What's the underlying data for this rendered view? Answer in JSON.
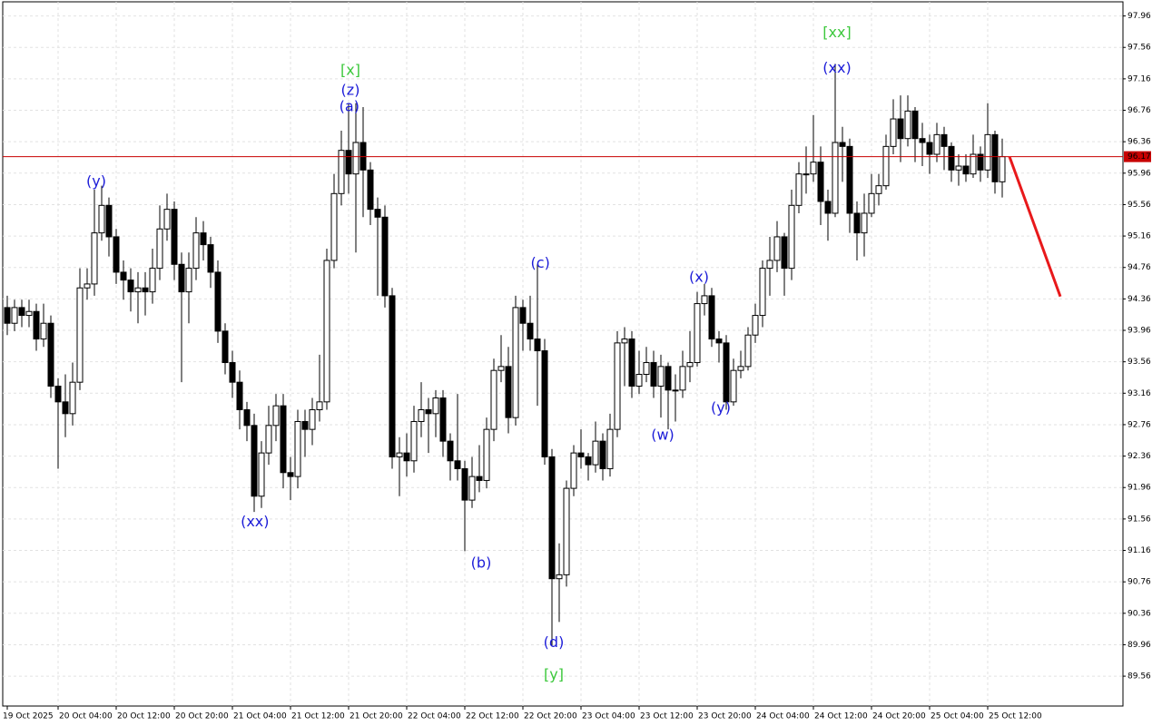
{
  "chart_data": {
    "type": "candlestick",
    "ylim": [
      89.18,
      98.14
    ],
    "yticks": [
      97.96,
      97.56,
      97.16,
      96.76,
      96.36,
      95.96,
      95.56,
      95.16,
      94.76,
      94.36,
      93.96,
      93.56,
      93.16,
      92.76,
      92.36,
      91.96,
      91.56,
      91.16,
      90.76,
      90.36,
      89.96,
      89.56
    ],
    "xticks": [
      {
        "value": 0,
        "label": "19 Oct 2025"
      },
      {
        "value": 7,
        "label": "20 Oct 04:00"
      },
      {
        "value": 15,
        "label": "20 Oct 12:00"
      },
      {
        "value": 23,
        "label": "20 Oct 20:00"
      },
      {
        "value": 31,
        "label": "21 Oct 04:00"
      },
      {
        "value": 39,
        "label": "21 Oct 12:00"
      },
      {
        "value": 47,
        "label": "21 Oct 20:00"
      },
      {
        "value": 55,
        "label": "22 Oct 04:00"
      },
      {
        "value": 63,
        "label": "22 Oct 12:00"
      },
      {
        "value": 71,
        "label": "22 Oct 20:00"
      },
      {
        "value": 79,
        "label": "23 Oct 04:00"
      },
      {
        "value": 87,
        "label": "23 Oct 12:00"
      },
      {
        "value": 95,
        "label": "23 Oct 20:00"
      },
      {
        "value": 103,
        "label": "24 Oct 04:00"
      },
      {
        "value": 111,
        "label": "24 Oct 12:00"
      },
      {
        "value": 119,
        "label": "24 Oct 20:00"
      },
      {
        "value": 127,
        "label": "25 Oct 04:00"
      },
      {
        "value": 135,
        "label": "25 Oct 12:00"
      }
    ],
    "grid": true,
    "up_color": "#ffffff",
    "down_color": "#000000",
    "open": [
      94.25,
      94.05,
      94.25,
      94.15,
      94.2,
      93.85,
      94.05,
      93.25,
      93.05,
      92.9,
      93.3,
      94.5,
      94.55,
      95.2,
      95.55,
      95.15,
      94.7,
      94.6,
      94.45,
      94.5,
      94.45,
      94.75,
      95.25,
      95.5,
      94.8,
      94.45,
      94.75,
      95.2,
      95.05,
      94.7,
      93.95,
      93.55,
      93.3,
      92.95,
      92.75,
      91.85,
      92.4,
      92.75,
      93.0,
      92.15,
      92.1,
      92.8,
      92.7,
      92.95,
      93.05,
      94.85,
      95.7,
      96.25,
      95.95,
      96.35,
      96.0,
      95.5,
      95.4,
      94.4,
      92.35,
      92.4,
      92.3,
      92.8,
      92.95,
      92.9,
      93.1,
      92.55,
      92.3,
      92.2,
      91.8,
      92.1,
      92.05,
      92.7,
      93.45,
      93.5,
      92.85,
      94.25,
      94.05,
      93.85,
      93.7,
      92.35,
      90.8,
      90.85,
      91.95,
      92.4,
      92.35,
      92.25,
      92.55,
      92.2,
      92.7,
      93.8,
      93.85,
      93.25,
      93.4,
      93.55,
      93.25,
      93.5,
      93.2,
      93.2,
      93.5,
      93.55,
      94.3,
      94.4,
      93.85,
      93.8,
      93.05,
      93.45,
      93.5,
      93.9,
      94.15,
      94.75,
      94.85,
      95.15,
      94.75,
      95.55,
      95.95,
      95.95,
      96.1,
      95.6,
      95.45,
      96.35,
      96.3,
      95.45,
      95.2,
      95.45,
      95.7,
      95.8,
      96.3,
      96.65,
      96.4,
      96.75,
      96.4,
      96.35,
      96.2,
      96.45,
      96.3,
      96.0,
      96.05,
      95.95,
      96.2,
      96.0,
      96.45,
      95.85
    ],
    "high": [
      94.4,
      94.35,
      94.35,
      94.35,
      94.3,
      94.3,
      94.15,
      93.35,
      93.4,
      93.55,
      94.75,
      94.75,
      95.75,
      95.8,
      95.65,
      95.25,
      94.85,
      94.75,
      94.7,
      94.7,
      95.0,
      95.55,
      95.7,
      95.6,
      94.95,
      94.95,
      95.4,
      95.35,
      95.15,
      94.85,
      94.05,
      93.7,
      93.45,
      93.05,
      92.9,
      92.55,
      93.0,
      93.15,
      93.15,
      92.35,
      92.95,
      92.95,
      93.1,
      93.65,
      95.0,
      95.95,
      96.5,
      96.85,
      96.85,
      96.8,
      96.1,
      95.65,
      95.55,
      94.5,
      92.6,
      92.65,
      93.0,
      93.3,
      93.1,
      93.2,
      93.2,
      92.65,
      93.15,
      92.3,
      92.35,
      92.5,
      92.85,
      93.6,
      93.9,
      93.75,
      94.4,
      94.35,
      94.4,
      94.8,
      93.85,
      92.45,
      91.25,
      92.05,
      92.5,
      92.7,
      92.4,
      92.8,
      92.65,
      92.9,
      93.95,
      94.0,
      93.95,
      93.7,
      93.75,
      93.7,
      93.65,
      93.55,
      93.4,
      93.7,
      93.95,
      94.45,
      94.55,
      94.5,
      93.95,
      93.9,
      93.6,
      93.7,
      94.0,
      94.3,
      94.85,
      95.15,
      95.35,
      95.2,
      95.75,
      96.1,
      96.3,
      96.7,
      96.3,
      95.75,
      97.35,
      96.55,
      96.4,
      95.6,
      95.7,
      95.95,
      95.95,
      96.45,
      96.9,
      96.95,
      96.95,
      96.8,
      96.6,
      96.45,
      96.6,
      96.55,
      96.35,
      96.2,
      96.2,
      96.45,
      96.3,
      96.85,
      96.5,
      96.4
    ],
    "low": [
      93.9,
      93.95,
      94.0,
      94.0,
      93.7,
      93.75,
      93.1,
      92.2,
      92.6,
      92.75,
      93.2,
      94.35,
      94.4,
      95.1,
      94.9,
      94.55,
      94.35,
      94.2,
      94.05,
      94.15,
      94.3,
      94.6,
      95.1,
      94.6,
      93.3,
      94.05,
      94.6,
      94.85,
      94.5,
      93.8,
      93.4,
      93.1,
      92.7,
      92.55,
      91.65,
      91.7,
      92.25,
      92.55,
      91.95,
      91.8,
      91.95,
      92.35,
      92.5,
      92.8,
      92.95,
      94.75,
      95.55,
      95.7,
      94.95,
      95.4,
      95.3,
      94.4,
      94.25,
      92.2,
      91.85,
      92.1,
      92.15,
      92.6,
      92.4,
      92.6,
      92.35,
      92.05,
      92.05,
      91.15,
      91.7,
      91.9,
      91.95,
      92.55,
      93.3,
      92.65,
      92.75,
      93.7,
      93.7,
      93.0,
      92.25,
      89.95,
      90.25,
      90.7,
      91.85,
      92.2,
      92.05,
      92.15,
      92.05,
      92.1,
      92.6,
      93.25,
      93.1,
      93.15,
      93.3,
      93.1,
      92.85,
      92.7,
      92.8,
      93.1,
      93.3,
      93.5,
      94.15,
      93.75,
      93.55,
      92.95,
      93.0,
      93.35,
      93.45,
      93.8,
      94.0,
      94.4,
      94.7,
      94.4,
      94.6,
      95.45,
      95.7,
      95.85,
      95.3,
      95.1,
      95.4,
      95.85,
      95.2,
      94.85,
      94.9,
      95.4,
      95.55,
      95.75,
      96.2,
      96.1,
      96.3,
      96.1,
      96.05,
      95.95,
      96.1,
      96.0,
      95.85,
      95.8,
      95.85,
      95.9,
      95.85,
      95.9,
      95.7,
      95.65
    ],
    "close": [
      94.05,
      94.25,
      94.15,
      94.2,
      93.85,
      94.05,
      93.25,
      93.05,
      92.9,
      93.3,
      94.5,
      94.55,
      95.2,
      95.55,
      95.15,
      94.7,
      94.6,
      94.45,
      94.5,
      94.45,
      94.75,
      95.25,
      95.5,
      94.8,
      94.45,
      94.75,
      95.2,
      95.05,
      94.7,
      93.95,
      93.55,
      93.3,
      92.95,
      92.75,
      91.85,
      92.4,
      92.75,
      93.0,
      92.15,
      92.1,
      92.8,
      92.7,
      92.95,
      93.05,
      94.85,
      95.7,
      96.25,
      95.95,
      96.35,
      96.0,
      95.5,
      95.4,
      94.4,
      92.35,
      92.4,
      92.3,
      92.8,
      92.95,
      92.9,
      93.1,
      92.55,
      92.3,
      92.2,
      91.8,
      92.1,
      92.05,
      92.7,
      93.45,
      93.5,
      92.85,
      94.25,
      94.05,
      93.85,
      93.7,
      92.35,
      90.8,
      90.85,
      91.95,
      92.4,
      92.35,
      92.25,
      92.55,
      92.2,
      92.7,
      93.8,
      93.85,
      93.25,
      93.4,
      93.55,
      93.25,
      93.5,
      93.2,
      93.2,
      93.5,
      93.55,
      94.3,
      94.4,
      93.85,
      93.8,
      93.05,
      93.45,
      93.5,
      93.9,
      94.15,
      94.75,
      94.85,
      95.15,
      94.75,
      95.55,
      95.95,
      95.95,
      96.1,
      95.6,
      95.45,
      96.35,
      96.3,
      95.45,
      95.2,
      95.45,
      95.7,
      95.8,
      96.3,
      96.65,
      96.4,
      96.75,
      96.4,
      96.35,
      96.2,
      96.45,
      96.3,
      96.0,
      96.05,
      95.95,
      96.2,
      96.0,
      96.45,
      95.85,
      96.17
    ],
    "current_price": 96.17,
    "current_price_color": "#c80000",
    "forecast": {
      "color": "#e8191b",
      "x": [
        138,
        145
      ],
      "y": [
        96.17,
        94.39
      ]
    },
    "annotations": [
      {
        "text": "(y)",
        "x": 12.25,
        "y": 95.85,
        "color": "#1c1cd8"
      },
      {
        "text": "[x]",
        "x": 47.25,
        "y": 97.26,
        "color": "#3cc83c"
      },
      {
        "text": "(z)",
        "x": 47.25,
        "y": 97.01,
        "color": "#1c1cd8"
      },
      {
        "text": "(a)",
        "x": 47.1,
        "y": 96.8,
        "color": "#1c1cd8"
      },
      {
        "text": "(xx)",
        "x": 34.1,
        "y": 91.52,
        "color": "#1c1cd8"
      },
      {
        "text": "(c)",
        "x": 73.4,
        "y": 94.81,
        "color": "#1c1cd8"
      },
      {
        "text": "(b)",
        "x": 65.25,
        "y": 90.99,
        "color": "#1c1cd8"
      },
      {
        "text": "(d)",
        "x": 75.25,
        "y": 89.98,
        "color": "#1c1cd8"
      },
      {
        "text": "[y]",
        "x": 75.25,
        "y": 89.57,
        "color": "#3cc83c"
      },
      {
        "text": "(w)",
        "x": 90.25,
        "y": 92.62,
        "color": "#1c1cd8"
      },
      {
        "text": "(x)",
        "x": 95.25,
        "y": 94.63,
        "color": "#1c1cd8"
      },
      {
        "text": "(y)",
        "x": 98.25,
        "y": 92.97,
        "color": "#1c1cd8"
      },
      {
        "text": "[xx]",
        "x": 114.25,
        "y": 97.74,
        "color": "#3cc83c"
      },
      {
        "text": "(xx)",
        "x": 114.25,
        "y": 97.29,
        "color": "#1c1cd8"
      }
    ]
  }
}
